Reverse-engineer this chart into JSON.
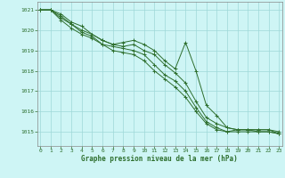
{
  "title": "Graphe pression niveau de la mer (hPa)",
  "background_color": "#cef5f5",
  "grid_color": "#9ed8d8",
  "line_color": "#2d6e2d",
  "spine_color": "#888888",
  "x_ticks": [
    0,
    1,
    2,
    3,
    4,
    5,
    6,
    7,
    8,
    9,
    10,
    11,
    12,
    13,
    14,
    15,
    16,
    17,
    18,
    19,
    20,
    21,
    22,
    23
  ],
  "y_ticks": [
    1015,
    1016,
    1017,
    1018,
    1019,
    1020,
    1021
  ],
  "ylim": [
    1014.3,
    1021.4
  ],
  "xlim": [
    -0.3,
    23.3
  ],
  "series": [
    [
      1021.0,
      1021.0,
      1020.8,
      1020.4,
      1020.2,
      1019.8,
      1019.5,
      1019.3,
      1019.4,
      1019.5,
      1019.3,
      1019.0,
      1018.5,
      1018.1,
      1019.4,
      1018.0,
      1016.3,
      1015.8,
      1015.2,
      1015.1,
      1015.1,
      1015.1,
      1015.1,
      1014.9
    ],
    [
      1021.0,
      1021.0,
      1020.7,
      1020.3,
      1020.0,
      1019.8,
      1019.5,
      1019.3,
      1019.2,
      1019.3,
      1019.0,
      1018.8,
      1018.3,
      1017.9,
      1017.4,
      1016.5,
      1015.7,
      1015.4,
      1015.2,
      1015.1,
      1015.1,
      1015.1,
      1015.1,
      1015.0
    ],
    [
      1021.0,
      1021.0,
      1020.6,
      1020.3,
      1019.9,
      1019.7,
      1019.3,
      1019.2,
      1019.1,
      1019.0,
      1018.8,
      1018.3,
      1017.8,
      1017.5,
      1017.0,
      1016.2,
      1015.5,
      1015.2,
      1015.0,
      1015.1,
      1015.1,
      1015.0,
      1015.0,
      1014.9
    ],
    [
      1021.0,
      1021.0,
      1020.5,
      1020.1,
      1019.8,
      1019.6,
      1019.3,
      1019.0,
      1018.9,
      1018.8,
      1018.5,
      1018.0,
      1017.6,
      1017.2,
      1016.7,
      1016.0,
      1015.4,
      1015.1,
      1015.0,
      1015.0,
      1015.0,
      1015.0,
      1015.0,
      1014.9
    ]
  ]
}
